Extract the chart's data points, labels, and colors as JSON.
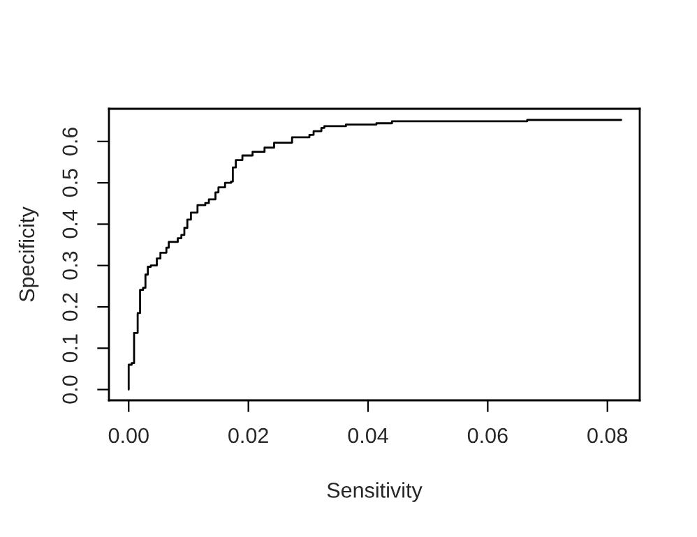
{
  "chart_data": {
    "type": "step",
    "xlabel": "Sensitivity",
    "ylabel": "Specificity",
    "x": [
      0,
      0,
      0.0005,
      0.0009,
      0.0015,
      0.0019,
      0.0024,
      0.0028,
      0.0032,
      0.0037,
      0.0047,
      0.0053,
      0.0063,
      0.0067,
      0.0082,
      0.0088,
      0.0093,
      0.0098,
      0.0104,
      0.0115,
      0.0128,
      0.0134,
      0.0145,
      0.015,
      0.0161,
      0.0171,
      0.0174,
      0.0179,
      0.019,
      0.0207,
      0.0227,
      0.0243,
      0.0273,
      0.0302,
      0.0309,
      0.0322,
      0.0327,
      0.0363,
      0.0414,
      0.044,
      0.0666,
      0.0823
    ],
    "values": [
      0,
      0.06,
      0.064,
      0.137,
      0.185,
      0.241,
      0.246,
      0.278,
      0.297,
      0.3,
      0.317,
      0.331,
      0.343,
      0.357,
      0.366,
      0.374,
      0.391,
      0.411,
      0.428,
      0.446,
      0.451,
      0.46,
      0.477,
      0.489,
      0.5,
      0.503,
      0.537,
      0.555,
      0.566,
      0.575,
      0.585,
      0.597,
      0.61,
      0.616,
      0.625,
      0.633,
      0.637,
      0.641,
      0.644,
      0.649,
      0.652,
      0.652
    ],
    "color": "#000000",
    "xlim": [
      -0.0033,
      0.0854
    ],
    "ylim": [
      -0.026,
      0.679
    ],
    "xticks": [
      {
        "value": 0,
        "label": "0.00"
      },
      {
        "value": 0.02,
        "label": "0.02"
      },
      {
        "value": 0.04,
        "label": "0.04"
      },
      {
        "value": 0.06,
        "label": "0.06"
      },
      {
        "value": 0.08,
        "label": "0.08"
      }
    ],
    "yticks": [
      {
        "value": 0,
        "label": "0.0"
      },
      {
        "value": 0.1,
        "label": "0.1"
      },
      {
        "value": 0.2,
        "label": "0.2"
      },
      {
        "value": 0.3,
        "label": "0.3"
      },
      {
        "value": 0.4,
        "label": "0.4"
      },
      {
        "value": 0.5,
        "label": "0.5"
      },
      {
        "value": 0.6,
        "label": "0.6"
      }
    ],
    "grid": false,
    "legend": false
  }
}
